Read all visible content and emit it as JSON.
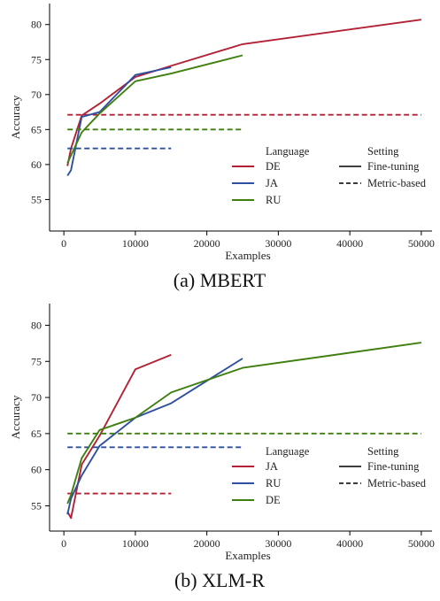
{
  "chart_data": [
    {
      "type": "line",
      "caption": "(a) MBERT",
      "xlabel": "Examples",
      "ylabel": "Accuracy",
      "xlim": [
        -2000,
        51500
      ],
      "ylim": [
        50.5,
        83
      ],
      "xticks": [
        0,
        10000,
        20000,
        30000,
        40000,
        50000
      ],
      "yticks": [
        55,
        60,
        65,
        70,
        75,
        80
      ],
      "grid": false,
      "legend_placement": "bottom-right",
      "legend_titles": {
        "language": "Language",
        "setting": "Setting"
      },
      "setting_labels": [
        "Fine-tuning",
        "Metric-based"
      ],
      "series": [
        {
          "name": "DE",
          "color": "#b22234",
          "fine_tuning": {
            "x": [
              500,
              1000,
              2500,
              5000,
              10000,
              15000,
              25000,
              50000
            ],
            "y": [
              59.8,
              62.3,
              67.0,
              68.7,
              72.5,
              74.1,
              77.2,
              80.7
            ]
          },
          "metric_based": {
            "x": [
              500,
              50000
            ],
            "y": [
              67.1,
              67.1
            ]
          }
        },
        {
          "name": "JA",
          "color": "#2f4f9f",
          "fine_tuning": {
            "x": [
              500,
              1000,
              2500,
              5000,
              10000,
              15000
            ],
            "y": [
              58.4,
              59.2,
              66.8,
              67.5,
              72.8,
              73.9
            ]
          },
          "metric_based": {
            "x": [
              500,
              15000
            ],
            "y": [
              62.3,
              62.3
            ]
          }
        },
        {
          "name": "RU",
          "color": "#3f7f10",
          "fine_tuning": {
            "x": [
              500,
              1000,
              2500,
              5000,
              10000,
              15000,
              25000
            ],
            "y": [
              60.2,
              61.3,
              64.6,
              67.3,
              71.9,
              73.0,
              75.6
            ]
          },
          "metric_based": {
            "x": [
              500,
              25000
            ],
            "y": [
              65.0,
              65.0
            ]
          }
        }
      ]
    },
    {
      "type": "line",
      "caption": "(b) XLM-R",
      "xlabel": "Examples",
      "ylabel": "Accuracy",
      "xlim": [
        -2000,
        51500
      ],
      "ylim": [
        51.5,
        83
      ],
      "xticks": [
        0,
        10000,
        20000,
        30000,
        40000,
        50000
      ],
      "yticks": [
        55,
        60,
        65,
        70,
        75,
        80
      ],
      "grid": false,
      "legend_placement": "bottom-right",
      "legend_titles": {
        "language": "Language",
        "setting": "Setting"
      },
      "setting_labels": [
        "Fine-tuning",
        "Metric-based"
      ],
      "series": [
        {
          "name": "JA",
          "color": "#b22234",
          "fine_tuning": {
            "x": [
              500,
              1000,
              2500,
              5000,
              10000,
              15000
            ],
            "y": [
              54.2,
              53.3,
              60.7,
              64.7,
              73.9,
              75.9
            ]
          },
          "metric_based": {
            "x": [
              500,
              15000
            ],
            "y": [
              56.7,
              56.7
            ]
          }
        },
        {
          "name": "RU",
          "color": "#2f4f9f",
          "fine_tuning": {
            "x": [
              500,
              1000,
              2500,
              5000,
              10000,
              15000,
              25000
            ],
            "y": [
              53.8,
              56.0,
              59.2,
              63.3,
              67.2,
              69.2,
              75.4
            ]
          },
          "metric_based": {
            "x": [
              500,
              25000
            ],
            "y": [
              63.1,
              63.1
            ]
          }
        },
        {
          "name": "DE",
          "color": "#3f7f10",
          "fine_tuning": {
            "x": [
              500,
              1000,
              2500,
              5000,
              10000,
              15000,
              25000,
              50000
            ],
            "y": [
              55.3,
              56.5,
              61.6,
              65.5,
              67.2,
              70.7,
              74.1,
              77.6
            ]
          },
          "metric_based": {
            "x": [
              500,
              50000
            ],
            "y": [
              65.0,
              65.0
            ]
          }
        }
      ]
    }
  ]
}
